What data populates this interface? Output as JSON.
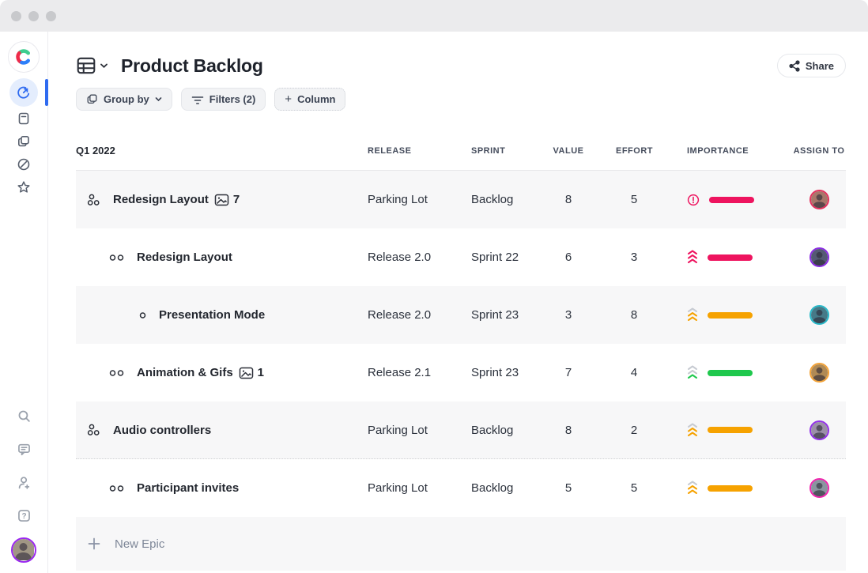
{
  "window": {
    "dots": 3
  },
  "colors": {
    "accent_blue": "#2f6bf0",
    "pink": "#ee145f",
    "orange": "#f6a200",
    "green": "#1fc84d",
    "chevron_gray": "#c7cbd2"
  },
  "header": {
    "title": "Product Backlog",
    "share_label": "Share"
  },
  "toolbar": {
    "group_by_label": "Group by",
    "filters_label": "Filters (2)",
    "add_column_label": "Column",
    "add_column_plus": "+"
  },
  "table": {
    "group_label": "Q1 2022",
    "columns": [
      "RELEASE",
      "SPRINT",
      "VALUE",
      "EFFORT",
      "IMPORTANCE",
      "ASSIGN TO"
    ],
    "rows": [
      {
        "name": "Redesign Layout",
        "type": "epic",
        "indent": 0,
        "attachment_count": "7",
        "release": "Parking Lot",
        "sprint": "Backlog",
        "value": "8",
        "effort": "5",
        "importance": {
          "icon": "alert",
          "icon_color": "#ee145f",
          "bar_color": "#ee145f"
        },
        "avatar": {
          "ring": "#e3325e",
          "bg": "#a8766a"
        }
      },
      {
        "name": "Redesign Layout",
        "type": "story",
        "indent": 1,
        "attachment_count": "",
        "release": "Release 2.0",
        "sprint": "Sprint 22",
        "value": "6",
        "effort": "3",
        "importance": {
          "icon": "chevrons",
          "chevron_colors": [
            "#ee145f",
            "#ee145f",
            "#ee145f"
          ],
          "bar_color": "#ee145f"
        },
        "avatar": {
          "ring": "#8a2be2",
          "bg": "#555a74"
        }
      },
      {
        "name": "Presentation Mode",
        "type": "subtask",
        "indent": 2,
        "attachment_count": "",
        "release": "Release 2.0",
        "sprint": "Sprint 23",
        "value": "3",
        "effort": "8",
        "importance": {
          "icon": "chevrons",
          "chevron_colors": [
            "#c7cbd2",
            "#f6a200",
            "#f6a200"
          ],
          "bar_color": "#f6a200"
        },
        "avatar": {
          "ring": "#28b8c8",
          "bg": "#467a88"
        }
      },
      {
        "name": "Animation & Gifs",
        "type": "story",
        "indent": 1,
        "attachment_count": "1",
        "release": "Release 2.1",
        "sprint": "Sprint 23",
        "value": "7",
        "effort": "4",
        "importance": {
          "icon": "chevrons",
          "chevron_colors": [
            "#c7cbd2",
            "#c7cbd2",
            "#1fc84d"
          ],
          "bar_color": "#1fc84d"
        },
        "avatar": {
          "ring": "#f2a33a",
          "bg": "#b08a55"
        }
      },
      {
        "name": "Audio controllers",
        "type": "epic",
        "indent": 0,
        "attachment_count": "",
        "release": "Parking Lot",
        "sprint": "Backlog",
        "value": "8",
        "effort": "2",
        "importance": {
          "icon": "chevrons",
          "chevron_colors": [
            "#c7cbd2",
            "#f6a200",
            "#f6a200"
          ],
          "bar_color": "#f6a200"
        },
        "avatar": {
          "ring": "#9230e8",
          "bg": "#9c8fa8"
        },
        "dotted_bottom": true
      },
      {
        "name": "Participant invites",
        "type": "story",
        "indent": 1,
        "attachment_count": "",
        "release": "Parking Lot",
        "sprint": "Backlog",
        "value": "5",
        "effort": "5",
        "importance": {
          "icon": "chevrons",
          "chevron_colors": [
            "#c7cbd2",
            "#f6a200",
            "#f6a200"
          ],
          "bar_color": "#f6a200"
        },
        "avatar": {
          "ring": "#f024ae",
          "bg": "#8a95a0"
        }
      }
    ],
    "new_epic": {
      "plus": "+",
      "label": "New Epic"
    }
  },
  "sidebar": {
    "logo": "c-logo",
    "top_icons": [
      "gauge-icon",
      "notes-icon",
      "copy-icon",
      "compass-icon",
      "star-icon"
    ],
    "bottom_icons": [
      "search-icon",
      "comment-icon",
      "add-user-icon",
      "help-icon"
    ],
    "active_index": 0
  }
}
